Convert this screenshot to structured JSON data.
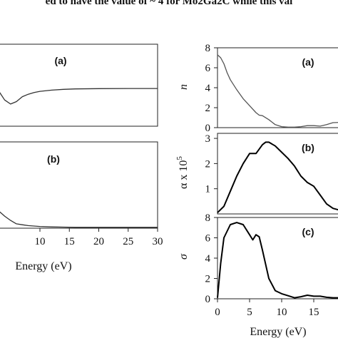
{
  "caption_fragment": "ed to have the value of ~ 4 for Mo2Ga2C while this val",
  "chart_data": [
    {
      "type": "line",
      "panel": "(a)",
      "xlabel": "",
      "ylabel": "",
      "xlim": [
        2,
        30
      ],
      "ylim": [
        0,
        10
      ],
      "grid": false,
      "x": [
        2,
        3,
        4,
        5,
        6,
        7,
        8,
        9,
        10,
        12,
        14,
        16,
        20,
        25,
        30
      ],
      "values": [
        5.2,
        4.3,
        3.2,
        2.7,
        3.0,
        3.6,
        3.9,
        4.1,
        4.25,
        4.4,
        4.5,
        4.55,
        4.58,
        4.6,
        4.6
      ],
      "line_color": "#333333"
    },
    {
      "type": "line",
      "panel": "(b)",
      "xlabel": "Energy (eV)",
      "ylabel": "",
      "xlim": [
        2,
        30
      ],
      "ylim": [
        0,
        10
      ],
      "xticks": [
        10,
        15,
        20,
        25,
        30
      ],
      "grid": false,
      "x": [
        2,
        3,
        4,
        5,
        6,
        7,
        8,
        9,
        10,
        12,
        14,
        16,
        20,
        25,
        30
      ],
      "values": [
        2.3,
        2.0,
        1.4,
        0.9,
        0.5,
        0.4,
        0.3,
        0.25,
        0.2,
        0.15,
        0.12,
        0.1,
        0.1,
        0.1,
        0.1
      ],
      "line_color": "#333333"
    },
    {
      "type": "line",
      "panel": "(a)",
      "xlabel": "",
      "ylabel": "n",
      "xlim": [
        0,
        20
      ],
      "ylim": [
        0,
        8
      ],
      "yticks": [
        0,
        2,
        4,
        6,
        8
      ],
      "grid": false,
      "x": [
        0,
        0.5,
        1,
        1.5,
        2,
        3,
        4,
        5,
        6,
        6.5,
        7,
        8,
        9,
        10,
        11,
        12,
        13,
        14,
        15,
        16,
        17,
        18,
        20
      ],
      "values": [
        7.3,
        7.0,
        6.4,
        5.5,
        4.8,
        3.8,
        2.9,
        2.2,
        1.5,
        1.25,
        1.2,
        0.8,
        0.3,
        0.1,
        0.05,
        0.05,
        0.1,
        0.2,
        0.2,
        0.15,
        0.3,
        0.5,
        0.55
      ],
      "line_color": "#555555"
    },
    {
      "type": "line",
      "panel": "(b)",
      "xlabel": "",
      "ylabel": "α x 10^5",
      "xlim": [
        0,
        20
      ],
      "ylim": [
        0,
        3.2
      ],
      "yticks": [
        1,
        2,
        3
      ],
      "grid": false,
      "x": [
        0,
        1,
        2,
        3,
        4,
        5,
        6,
        7,
        7.5,
        8,
        9,
        10,
        11,
        12,
        13,
        14,
        15,
        16,
        17,
        18,
        19,
        20
      ],
      "values": [
        0.05,
        0.3,
        0.9,
        1.5,
        2.0,
        2.4,
        2.4,
        2.75,
        2.85,
        2.85,
        2.7,
        2.45,
        2.2,
        1.9,
        1.5,
        1.25,
        1.1,
        0.75,
        0.4,
        0.22,
        0.15,
        0.12
      ],
      "line_color": "#000000"
    },
    {
      "type": "line",
      "panel": "(c)",
      "xlabel": "Energy (eV)",
      "ylabel": "σ",
      "xlim": [
        0,
        20
      ],
      "ylim": [
        0,
        8
      ],
      "xticks": [
        0,
        5,
        10,
        15
      ],
      "yticks": [
        0,
        2,
        4,
        6,
        8
      ],
      "grid": false,
      "x": [
        0,
        0.5,
        1,
        2,
        3,
        4,
        5,
        5.5,
        6,
        6.5,
        7,
        8,
        9,
        10,
        11,
        12,
        13,
        14,
        15,
        16,
        17,
        18,
        20
      ],
      "values": [
        0.1,
        3.5,
        6.0,
        7.3,
        7.5,
        7.3,
        6.3,
        5.8,
        6.3,
        6.1,
        4.8,
        2.0,
        0.8,
        0.5,
        0.3,
        0.1,
        0.2,
        0.35,
        0.25,
        0.25,
        0.15,
        0.1,
        0.1
      ],
      "line_color": "#000000"
    }
  ]
}
